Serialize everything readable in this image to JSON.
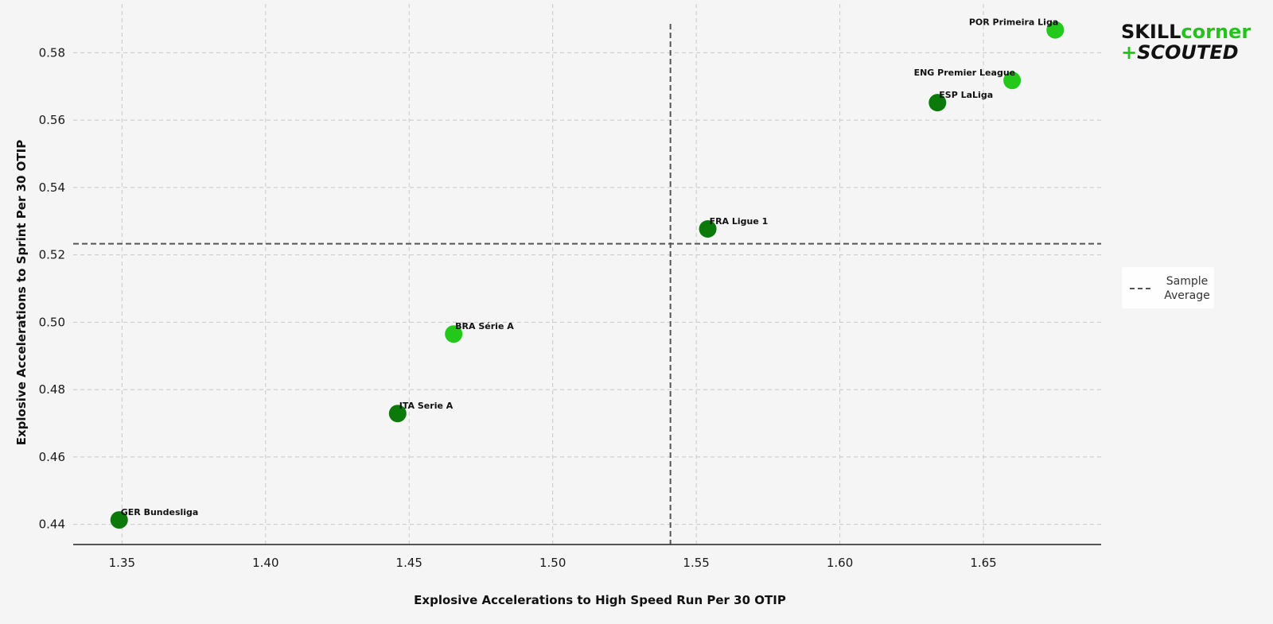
{
  "logo": {
    "word_skill": "SKILL",
    "word_corner": "corner",
    "plus": "+",
    "word_scouted": "SCOUTED",
    "colors": {
      "dark": "#111111",
      "green": "#22c41a"
    }
  },
  "legend": {
    "line1": "Sample",
    "line2": "Average"
  },
  "colors": {
    "dark_green": "#0b7a0b",
    "bright_green": "#22c91a",
    "grid": "#c8c8c8",
    "average_line": "#555555",
    "background": "#f5f5f5"
  },
  "chart_data": {
    "type": "scatter",
    "title": "",
    "xlabel": "Explosive Accelerations to High Speed Run Per 30 OTIP",
    "ylabel": "Explosive Accelerations to Sprint Per 30 OTIP",
    "xlim": [
      1.333,
      1.691
    ],
    "ylim": [
      0.434,
      0.5945
    ],
    "x_ticks": [
      1.35,
      1.4,
      1.45,
      1.5,
      1.55,
      1.6,
      1.65
    ],
    "x_tick_labels": [
      "1.35",
      "1.40",
      "1.45",
      "1.50",
      "1.55",
      "1.60",
      "1.65"
    ],
    "y_ticks": [
      0.44,
      0.46,
      0.48,
      0.5,
      0.52,
      0.54,
      0.56,
      0.58
    ],
    "y_tick_labels": [
      "0.44",
      "0.46",
      "0.48",
      "0.50",
      "0.52",
      "0.54",
      "0.56",
      "0.58"
    ],
    "grid": true,
    "legend_position": "right",
    "reference_lines": {
      "x_average": 1.541,
      "y_average": 0.5233
    },
    "points": [
      {
        "label": "POR Primeira Liga",
        "x": 1.675,
        "y": 0.5868,
        "color": "bright",
        "label_side": "left"
      },
      {
        "label": "ENG Premier League",
        "x": 1.66,
        "y": 0.5718,
        "color": "bright",
        "label_side": "left"
      },
      {
        "label": "ESP LaLiga",
        "x": 1.634,
        "y": 0.5652,
        "color": "dark",
        "label_side": "right"
      },
      {
        "label": "FRA Ligue 1",
        "x": 1.554,
        "y": 0.5277,
        "color": "dark",
        "label_side": "right"
      },
      {
        "label": "BRA Série A",
        "x": 1.4655,
        "y": 0.4965,
        "color": "bright",
        "label_side": "right"
      },
      {
        "label": "ITA Serie A",
        "x": 1.446,
        "y": 0.4729,
        "color": "dark",
        "label_side": "right"
      },
      {
        "label": "GER Bundesliga",
        "x": 1.349,
        "y": 0.4413,
        "color": "dark",
        "label_side": "right"
      }
    ]
  }
}
